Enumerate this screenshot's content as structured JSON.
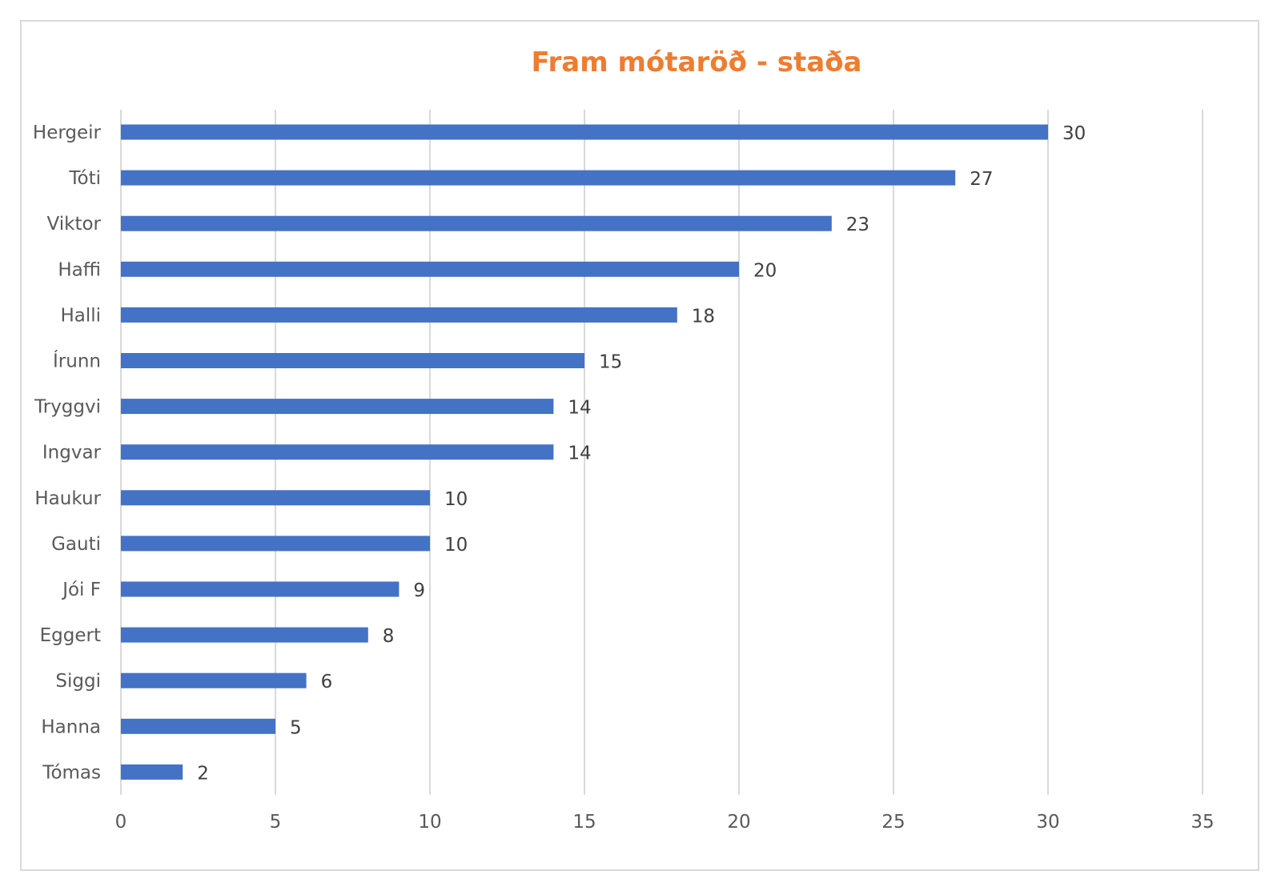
{
  "chart_data": {
    "type": "bar",
    "orientation": "horizontal",
    "title": "Fram mótaröð - staða",
    "categories": [
      "Hergeir",
      "Tóti",
      "Viktor",
      "Haffi",
      "Halli",
      "Írunn",
      "Tryggvi",
      "Ingvar",
      "Haukur",
      "Gauti",
      "Jói F",
      "Eggert",
      "Siggi",
      "Hanna",
      "Tómas"
    ],
    "values": [
      30,
      27,
      23,
      20,
      18,
      15,
      14,
      14,
      10,
      10,
      9,
      8,
      6,
      5,
      2
    ],
    "data_labels": [
      "30",
      "27",
      "23",
      "20",
      "18",
      "15",
      "14",
      "14",
      "10",
      "10",
      "9",
      "8",
      "6",
      "5",
      "2"
    ],
    "x_ticks": [
      "0",
      "5",
      "10",
      "15",
      "20",
      "25",
      "30",
      "35"
    ],
    "xlim": [
      0,
      35
    ],
    "grid": "vertical",
    "legend": "none",
    "xlabel": "",
    "ylabel": ""
  },
  "colors": {
    "bar": "#4472c4",
    "title": "#ed7d31",
    "gridline": "#d9d9d9",
    "text": "#595959"
  }
}
